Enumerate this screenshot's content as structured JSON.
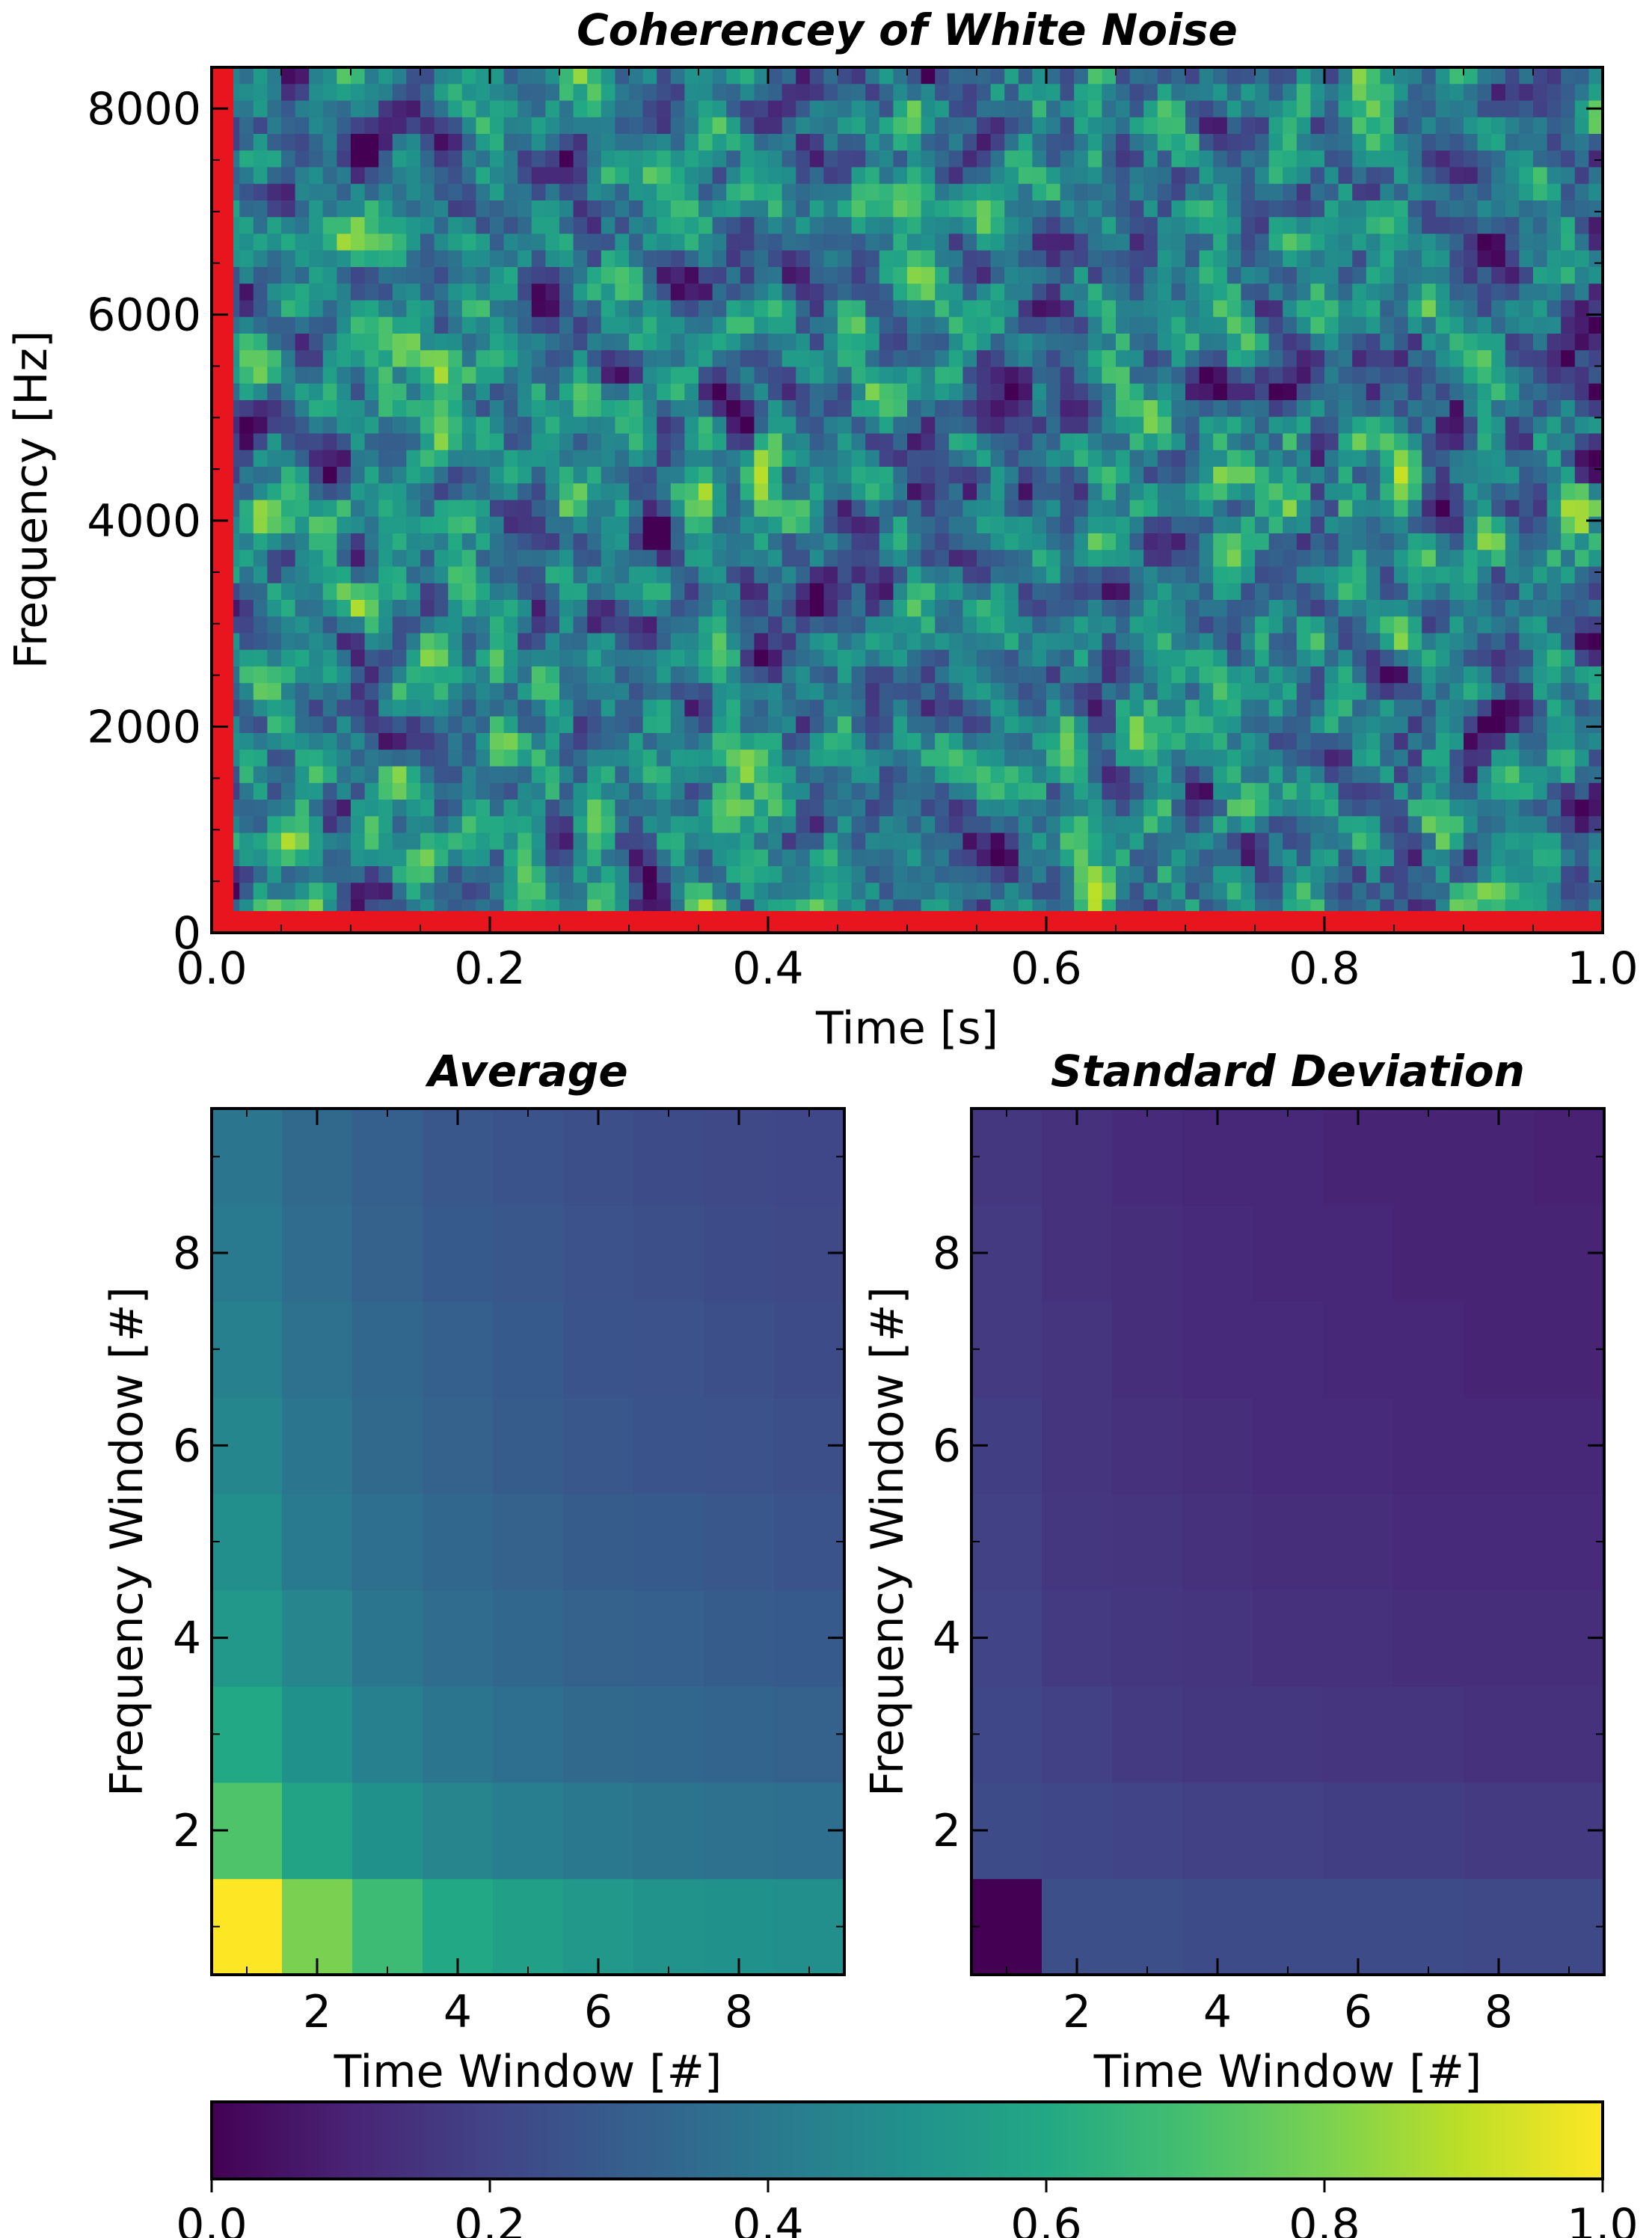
{
  "chart_data": [
    {
      "type": "heatmap",
      "title": "Coherencey of White Noise",
      "xlabel": "Time [s]",
      "ylabel": "Frequency [Hz]",
      "xlim": [
        0.0,
        1.0
      ],
      "ylim": [
        0,
        8400
      ],
      "xticks": [
        "0.0",
        "0.2",
        "0.4",
        "0.6",
        "0.8",
        "1.0"
      ],
      "yticks": [
        "0",
        "2000",
        "4000",
        "6000",
        "8000"
      ],
      "value_range": [
        0.0,
        1.0
      ],
      "description_of_values": "random coherence values, mostly 0.15-0.7",
      "highlight_color": "#e8141e",
      "highlights": [
        "first time bin (t=0)",
        "first frequency bin (f=0)"
      ]
    },
    {
      "type": "heatmap",
      "title": "Average",
      "xlabel": "Time Window [#]",
      "ylabel": "Frequency Window [#]",
      "xticks": [
        "2",
        "4",
        "6",
        "8"
      ],
      "yticks": [
        "2",
        "4",
        "6",
        "8"
      ],
      "x_range": [
        0.5,
        9.5
      ],
      "y_range": [
        0.5,
        9.5
      ],
      "rows_from_freq1": [
        [
          1.0,
          0.8,
          0.68,
          0.6,
          0.56,
          0.53,
          0.51,
          0.5,
          0.49
        ],
        [
          0.72,
          0.58,
          0.5,
          0.45,
          0.42,
          0.4,
          0.38,
          0.37,
          0.36
        ],
        [
          0.6,
          0.5,
          0.43,
          0.39,
          0.36,
          0.34,
          0.33,
          0.32,
          0.31
        ],
        [
          0.53,
          0.45,
          0.39,
          0.35,
          0.33,
          0.31,
          0.3,
          0.29,
          0.28
        ],
        [
          0.49,
          0.41,
          0.36,
          0.33,
          0.31,
          0.29,
          0.28,
          0.27,
          0.26
        ],
        [
          0.46,
          0.39,
          0.34,
          0.31,
          0.29,
          0.27,
          0.26,
          0.25,
          0.24
        ],
        [
          0.43,
          0.37,
          0.33,
          0.3,
          0.28,
          0.26,
          0.25,
          0.24,
          0.23
        ],
        [
          0.41,
          0.35,
          0.31,
          0.28,
          0.27,
          0.25,
          0.24,
          0.23,
          0.22
        ],
        [
          0.39,
          0.34,
          0.3,
          0.27,
          0.26,
          0.24,
          0.23,
          0.22,
          0.21
        ]
      ]
    },
    {
      "type": "heatmap",
      "title": "Standard Deviation",
      "xlabel": "Time Window [#]",
      "ylabel": "Frequency Window [#]",
      "xticks": [
        "2",
        "4",
        "6",
        "8"
      ],
      "yticks": [
        "2",
        "4",
        "6",
        "8"
      ],
      "x_range": [
        0.5,
        9.5
      ],
      "y_range": [
        0.5,
        9.5
      ],
      "rows_from_freq1": [
        [
          0.0,
          0.24,
          0.24,
          0.23,
          0.23,
          0.23,
          0.23,
          0.22,
          0.22
        ],
        [
          0.23,
          0.21,
          0.2,
          0.19,
          0.19,
          0.18,
          0.18,
          0.17,
          0.17
        ],
        [
          0.21,
          0.19,
          0.17,
          0.16,
          0.16,
          0.15,
          0.15,
          0.14,
          0.14
        ],
        [
          0.2,
          0.17,
          0.16,
          0.15,
          0.14,
          0.14,
          0.13,
          0.13,
          0.13
        ],
        [
          0.19,
          0.16,
          0.15,
          0.14,
          0.13,
          0.13,
          0.12,
          0.12,
          0.12
        ],
        [
          0.18,
          0.15,
          0.14,
          0.13,
          0.12,
          0.12,
          0.11,
          0.11,
          0.11
        ],
        [
          0.17,
          0.15,
          0.13,
          0.12,
          0.12,
          0.11,
          0.11,
          0.1,
          0.1
        ],
        [
          0.17,
          0.14,
          0.13,
          0.12,
          0.11,
          0.11,
          0.1,
          0.1,
          0.1
        ],
        [
          0.16,
          0.14,
          0.12,
          0.11,
          0.11,
          0.1,
          0.1,
          0.1,
          0.09
        ]
      ]
    },
    {
      "type": "colorbar",
      "colormap": "viridis",
      "range": [
        0.0,
        1.0
      ],
      "ticks": [
        "0.0",
        "0.2",
        "0.4",
        "0.6",
        "0.8",
        "1.0"
      ]
    }
  ]
}
